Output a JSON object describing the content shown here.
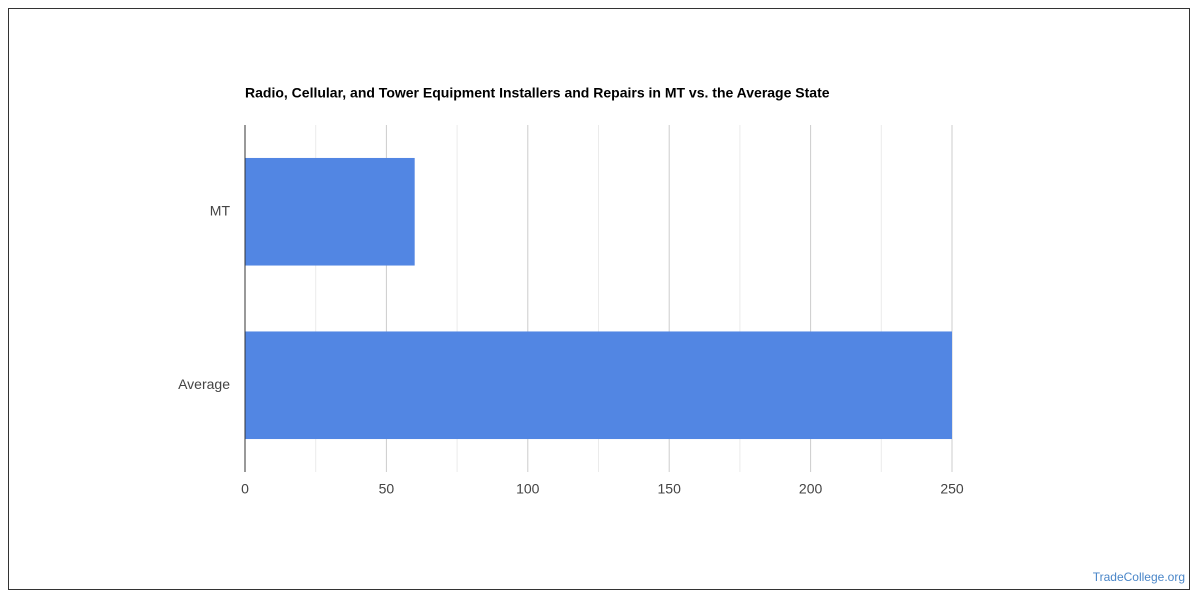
{
  "chart_data": {
    "type": "bar",
    "orientation": "horizontal",
    "title": "Radio, Cellular, and Tower Equipment Installers and Repairs in MT vs. the Average State",
    "categories": [
      "MT",
      "Average"
    ],
    "values": [
      60,
      250
    ],
    "color": "#5286e3",
    "xlim": [
      0,
      250
    ],
    "xticks": [
      0,
      50,
      100,
      150,
      200,
      250
    ],
    "minor_xticks": [
      25,
      75,
      125,
      175,
      225
    ],
    "grid": true
  },
  "watermark": "TradeCollege.org"
}
